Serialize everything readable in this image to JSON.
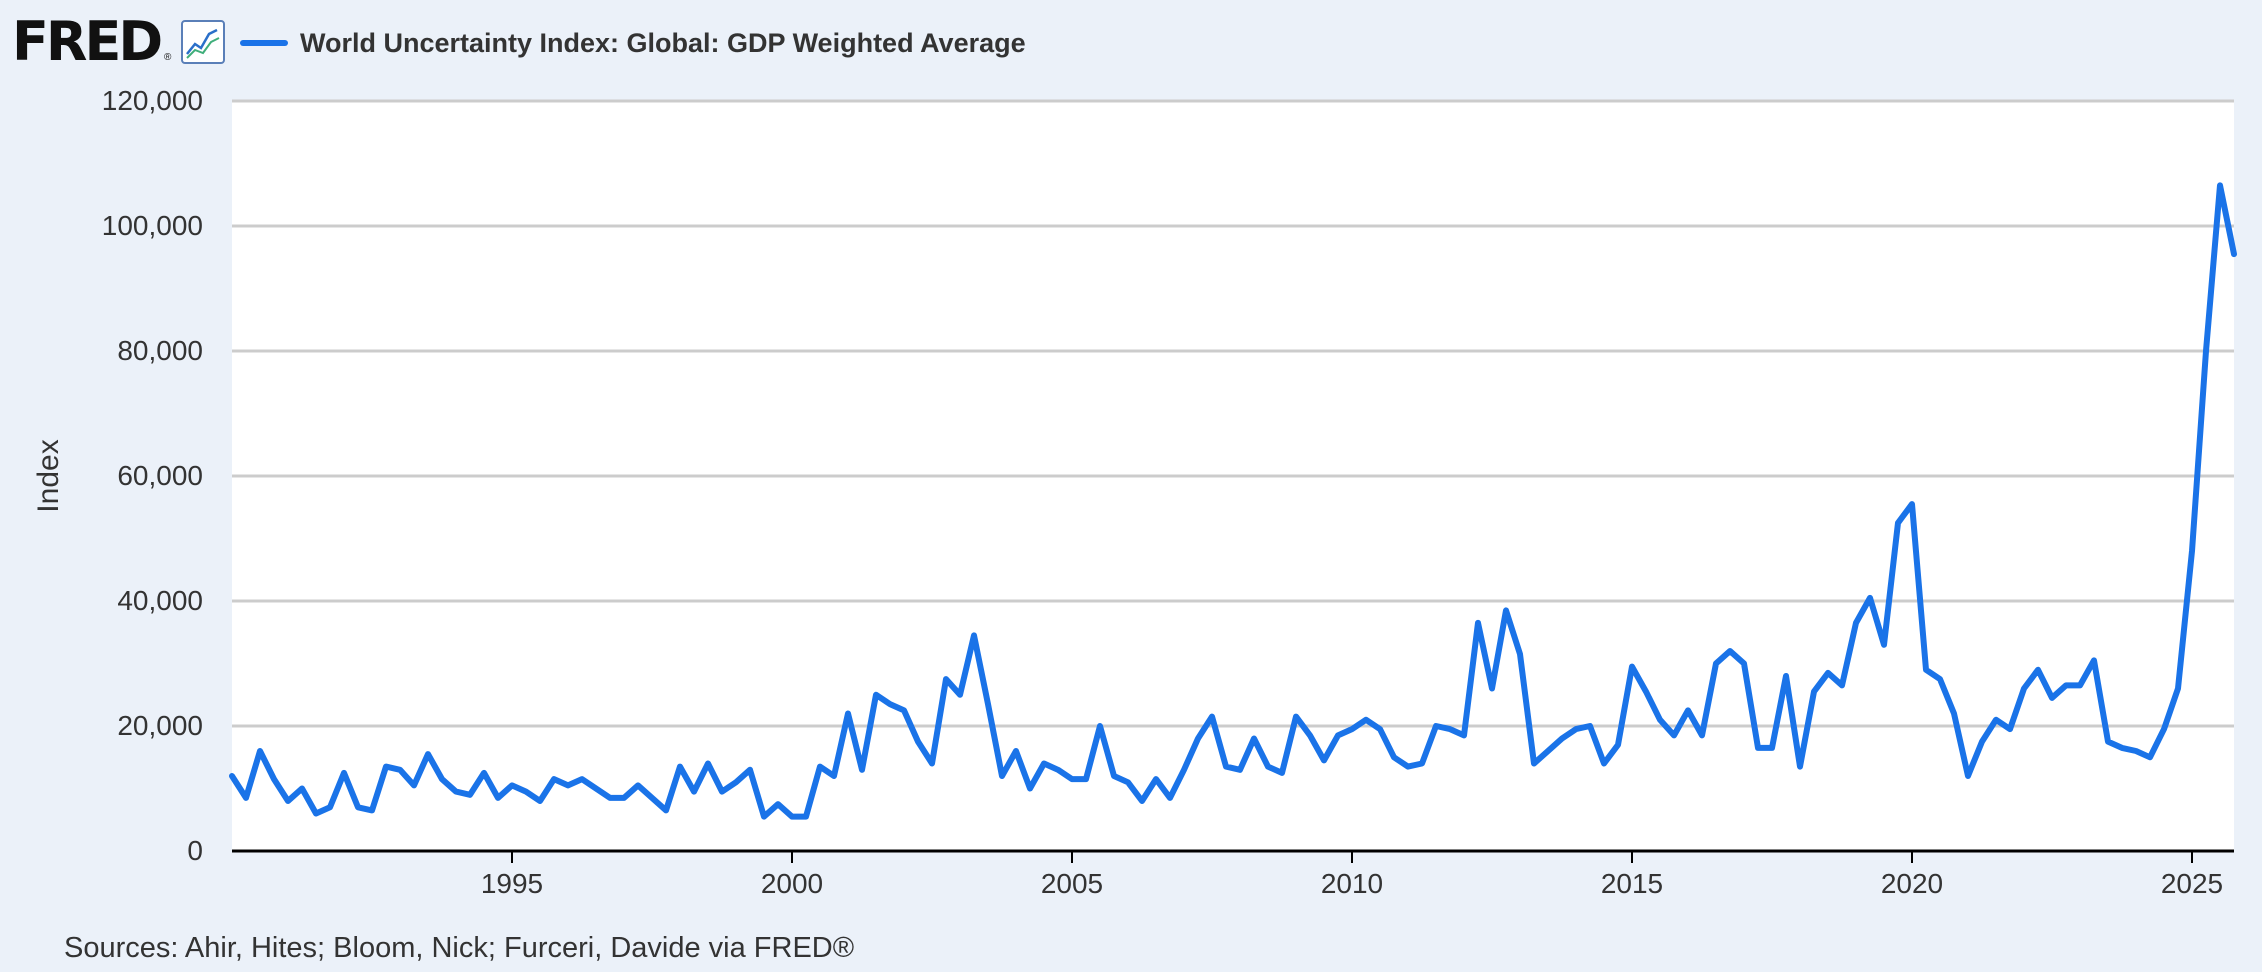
{
  "header": {
    "logo_text": "FRED",
    "logo_mark": "®",
    "logo_icon": "line-chart-icon"
  },
  "source_note": "Sources: Ahir, Hites; Bloom, Nick; Furceri, Davide via FRED®",
  "colors": {
    "line": "#1a73e8",
    "background": "#ebf1f9",
    "plot_bg": "#ffffff",
    "grid": "#cccccc",
    "axis": "#000000",
    "text": "#333333"
  },
  "chart_data": {
    "type": "line",
    "title": "",
    "xlabel": "",
    "ylabel": "Index",
    "legend_position": "top-left",
    "grid": true,
    "xlim": [
      1990.0,
      2025.75
    ],
    "ylim": [
      0,
      120000
    ],
    "yticks": [
      0,
      20000,
      40000,
      60000,
      80000,
      100000,
      120000
    ],
    "ytick_labels": [
      "0",
      "20,000",
      "40,000",
      "60,000",
      "80,000",
      "100,000",
      "120,000"
    ],
    "xticks": [
      1995,
      2000,
      2005,
      2010,
      2015,
      2020,
      2025
    ],
    "xtick_labels": [
      "1995",
      "2000",
      "2005",
      "2010",
      "2015",
      "2020",
      "2025"
    ],
    "series": [
      {
        "name": "World Uncertainty Index: Global: GDP Weighted Average",
        "color": "#1a73e8",
        "x": [
          "1990-Q1",
          "1990-Q2",
          "1990-Q3",
          "1990-Q4",
          "1991-Q1",
          "1991-Q2",
          "1991-Q3",
          "1991-Q4",
          "1992-Q1",
          "1992-Q2",
          "1992-Q3",
          "1992-Q4",
          "1993-Q1",
          "1993-Q2",
          "1993-Q3",
          "1993-Q4",
          "1994-Q1",
          "1994-Q2",
          "1994-Q3",
          "1994-Q4",
          "1995-Q1",
          "1995-Q2",
          "1995-Q3",
          "1995-Q4",
          "1996-Q1",
          "1996-Q2",
          "1996-Q3",
          "1996-Q4",
          "1997-Q1",
          "1997-Q2",
          "1997-Q3",
          "1997-Q4",
          "1998-Q1",
          "1998-Q2",
          "1998-Q3",
          "1998-Q4",
          "1999-Q1",
          "1999-Q2",
          "1999-Q3",
          "1999-Q4",
          "2000-Q1",
          "2000-Q2",
          "2000-Q3",
          "2000-Q4",
          "2001-Q1",
          "2001-Q2",
          "2001-Q3",
          "2001-Q4",
          "2002-Q1",
          "2002-Q2",
          "2002-Q3",
          "2002-Q4",
          "2003-Q1",
          "2003-Q2",
          "2003-Q3",
          "2003-Q4",
          "2004-Q1",
          "2004-Q2",
          "2004-Q3",
          "2004-Q4",
          "2005-Q1",
          "2005-Q2",
          "2005-Q3",
          "2005-Q4",
          "2006-Q1",
          "2006-Q2",
          "2006-Q3",
          "2006-Q4",
          "2007-Q1",
          "2007-Q2",
          "2007-Q3",
          "2007-Q4",
          "2008-Q1",
          "2008-Q2",
          "2008-Q3",
          "2008-Q4",
          "2009-Q1",
          "2009-Q2",
          "2009-Q3",
          "2009-Q4",
          "2010-Q1",
          "2010-Q2",
          "2010-Q3",
          "2010-Q4",
          "2011-Q1",
          "2011-Q2",
          "2011-Q3",
          "2011-Q4",
          "2012-Q1",
          "2012-Q2",
          "2012-Q3",
          "2012-Q4",
          "2013-Q1",
          "2013-Q2",
          "2013-Q3",
          "2013-Q4",
          "2014-Q1",
          "2014-Q2",
          "2014-Q3",
          "2014-Q4",
          "2015-Q1",
          "2015-Q2",
          "2015-Q3",
          "2015-Q4",
          "2016-Q1",
          "2016-Q2",
          "2016-Q3",
          "2016-Q4",
          "2017-Q1",
          "2017-Q2",
          "2017-Q3",
          "2017-Q4",
          "2018-Q1",
          "2018-Q2",
          "2018-Q3",
          "2018-Q4",
          "2019-Q1",
          "2019-Q2",
          "2019-Q3",
          "2019-Q4",
          "2020-Q1",
          "2020-Q2",
          "2020-Q3",
          "2020-Q4",
          "2021-Q1",
          "2021-Q2",
          "2021-Q3",
          "2021-Q4",
          "2022-Q1",
          "2022-Q2",
          "2022-Q3",
          "2022-Q4",
          "2023-Q1",
          "2023-Q2",
          "2023-Q3",
          "2023-Q4",
          "2024-Q1",
          "2024-Q2",
          "2024-Q3",
          "2024-Q4",
          "2025-Q1",
          "2025-Q2",
          "2025-Q3",
          "2025-Q4"
        ],
        "values": [
          12000,
          8500,
          16000,
          11500,
          8000,
          10000,
          6000,
          7000,
          12500,
          7000,
          6500,
          13500,
          13000,
          10500,
          15500,
          11500,
          9500,
          9000,
          12500,
          8500,
          10500,
          9500,
          8000,
          11500,
          10500,
          11500,
          10000,
          8500,
          8500,
          10500,
          8500,
          6500,
          13500,
          9500,
          14000,
          9500,
          11000,
          13000,
          5500,
          7500,
          5500,
          5500,
          13500,
          12000,
          22000,
          13000,
          25000,
          23500,
          22500,
          17500,
          14000,
          27500,
          25000,
          34500,
          23500,
          12000,
          16000,
          10000,
          14000,
          13000,
          11500,
          11500,
          20000,
          12000,
          11000,
          8000,
          11500,
          8500,
          13000,
          18000,
          21500,
          13500,
          13000,
          18000,
          13500,
          12500,
          21500,
          18500,
          14500,
          18500,
          19500,
          21000,
          19500,
          15000,
          13500,
          14000,
          20000,
          19500,
          18500,
          36500,
          26000,
          38500,
          31500,
          14000,
          16000,
          18000,
          19500,
          20000,
          14000,
          17000,
          29500,
          25500,
          21000,
          18500,
          22500,
          18500,
          30000,
          32000,
          30000,
          16500,
          16500,
          28000,
          13500,
          25500,
          28500,
          26500,
          36500,
          40500,
          33000,
          52500,
          55500,
          29000,
          27500,
          22000,
          12000,
          17500,
          21000,
          19500,
          26000,
          29000,
          24500,
          26500,
          26500,
          30500,
          17500,
          16500,
          16000,
          15000,
          19500,
          26000,
          48000,
          80000,
          106500,
          95500
        ]
      }
    ]
  }
}
